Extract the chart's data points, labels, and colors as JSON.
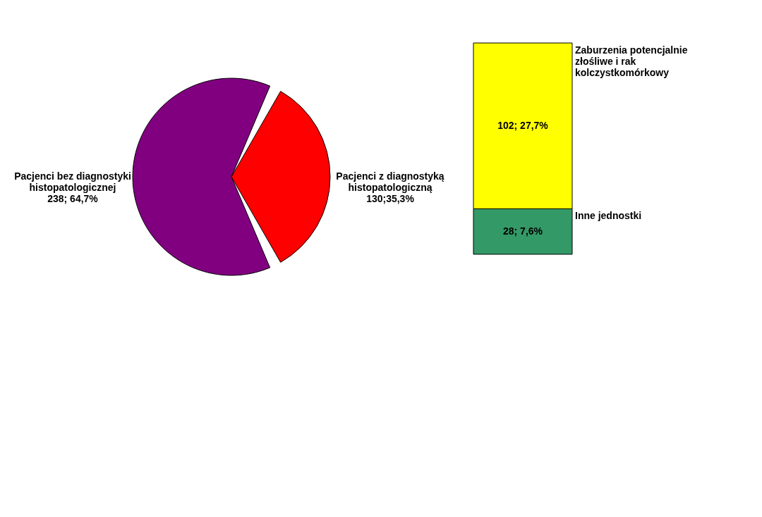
{
  "chart_data": [
    {
      "type": "pie",
      "categories": [
        "Pacjenci bez diagnostyki histopatologicznej",
        "Pacjenci z diagnostyką histopatologiczną"
      ],
      "values": [
        238,
        130
      ],
      "colors": [
        "#800080",
        "#ff0000"
      ],
      "value_labels": [
        "238; 64,7%",
        "130;35,3%"
      ]
    },
    {
      "type": "bar",
      "stacked": true,
      "categories": [
        null
      ],
      "series": [
        {
          "name": "Inne jednostki",
          "color": "#339966",
          "values": [
            28
          ],
          "value_labels": [
            "28; 7,6%"
          ]
        },
        {
          "name": "Zaburzenia potencjalnie złośliwe i rak kolczystkomórkowy",
          "color": "#ffff00",
          "values": [
            102
          ],
          "value_labels": [
            "102; 27,7%"
          ]
        }
      ]
    }
  ]
}
